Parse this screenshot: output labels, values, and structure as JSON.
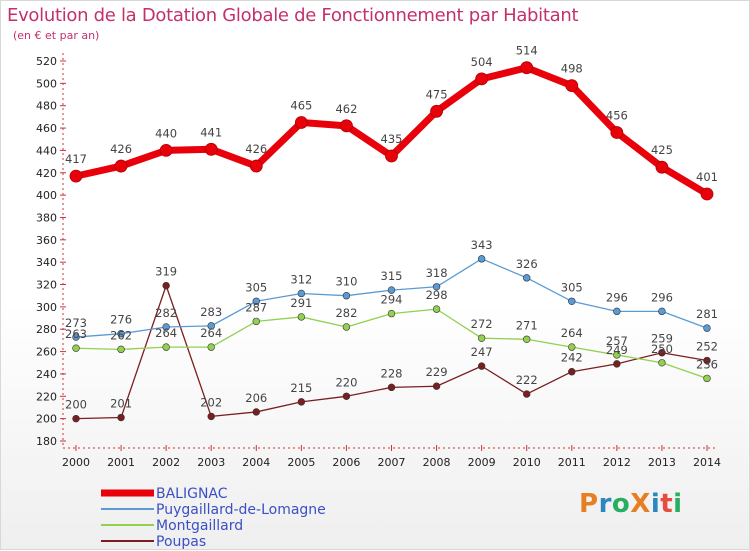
{
  "header": {
    "title": "Evolution de la Dotation Globale de Fonctionnement par Habitant",
    "subtitle": "(en € et par an)"
  },
  "logo": {
    "text": "ProXiti"
  },
  "chart_data": {
    "type": "line",
    "x": [
      "2000",
      "2001",
      "2002",
      "2003",
      "2004",
      "2005",
      "2006",
      "2007",
      "2008",
      "2009",
      "2010",
      "2011",
      "2012",
      "2013",
      "2014"
    ],
    "ylim": [
      180,
      520
    ],
    "yticks": [
      180,
      200,
      220,
      240,
      260,
      280,
      300,
      320,
      340,
      360,
      380,
      400,
      420,
      440,
      460,
      480,
      500,
      520
    ],
    "grid": false,
    "legend": "bottom-left",
    "series": [
      {
        "name": "BALIGNAC",
        "color": "#e8000b",
        "values": [
          417,
          426,
          440,
          441,
          426,
          465,
          462,
          435,
          475,
          504,
          514,
          498,
          456,
          425,
          401
        ]
      },
      {
        "name": "Puygaillard-de-Lomagne",
        "color": "#5b9bd5",
        "values": [
          273,
          276,
          282,
          283,
          305,
          312,
          310,
          315,
          318,
          343,
          326,
          305,
          296,
          296,
          281
        ]
      },
      {
        "name": "Montgaillard",
        "color": "#92d050",
        "values": [
          263,
          262,
          264,
          264,
          287,
          291,
          282,
          294,
          298,
          272,
          271,
          264,
          257,
          250,
          236
        ]
      },
      {
        "name": "Poupas",
        "color": "#7a1f1f",
        "values": [
          200,
          201,
          319,
          202,
          206,
          215,
          220,
          228,
          229,
          247,
          222,
          242,
          249,
          259,
          252
        ]
      }
    ]
  }
}
